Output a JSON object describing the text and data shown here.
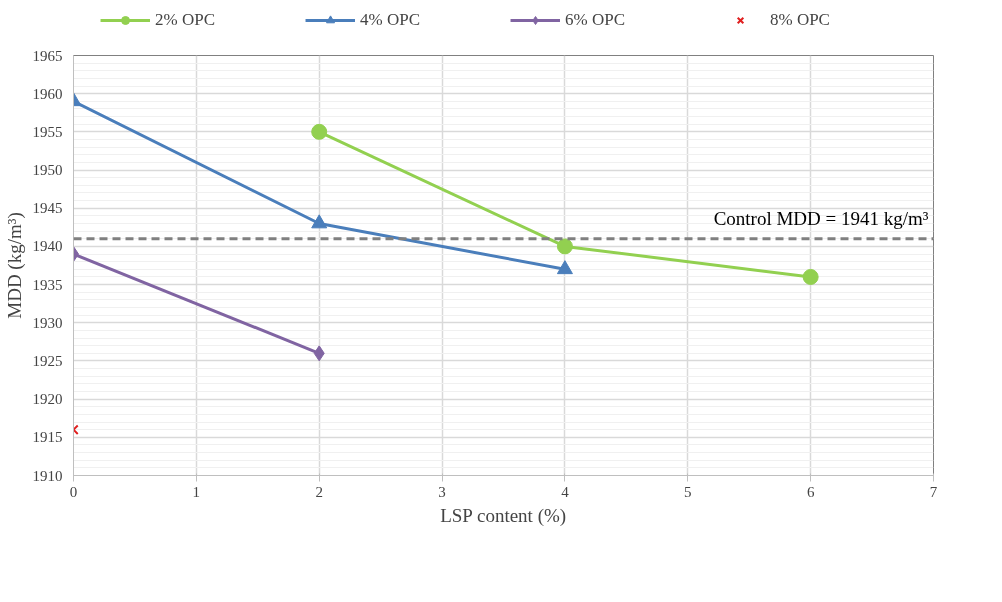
{
  "chart_data": {
    "type": "line",
    "xlabel": "LSP content (%)",
    "ylabel": "MDD (kg/m³)",
    "xlim": [
      0,
      7
    ],
    "xticks": [
      0,
      1,
      2,
      3,
      4,
      5,
      6,
      7
    ],
    "ylim": [
      1910,
      1965
    ],
    "yticks": [
      1910,
      1915,
      1920,
      1925,
      1930,
      1935,
      1940,
      1945,
      1950,
      1955,
      1960,
      1965
    ],
    "grid": true,
    "legend": "top",
    "series": [
      {
        "name": "2% OPC",
        "color": "#92d050",
        "marker": "circle",
        "x": [
          2,
          4,
          6
        ],
        "values": [
          1955,
          1940,
          1936
        ]
      },
      {
        "name": "4% OPC",
        "color": "#4a7ebb",
        "marker": "triangle",
        "x": [
          0,
          2,
          4
        ],
        "values": [
          1959,
          1943,
          1937
        ]
      },
      {
        "name": "6% OPC",
        "color": "#8064a2",
        "marker": "diamond",
        "x": [
          0,
          2
        ],
        "values": [
          1939,
          1926
        ]
      },
      {
        "name": "8% OPC",
        "type": "scatter",
        "color": "#e02020",
        "marker": "cross",
        "x": [
          0
        ],
        "values": [
          1916
        ]
      }
    ],
    "ref_lines": [
      {
        "axis": "y",
        "value": 1941,
        "label": "Control MDD = 1941 kg/m³",
        "color": "#808080",
        "line_style": "dashed"
      }
    ]
  }
}
